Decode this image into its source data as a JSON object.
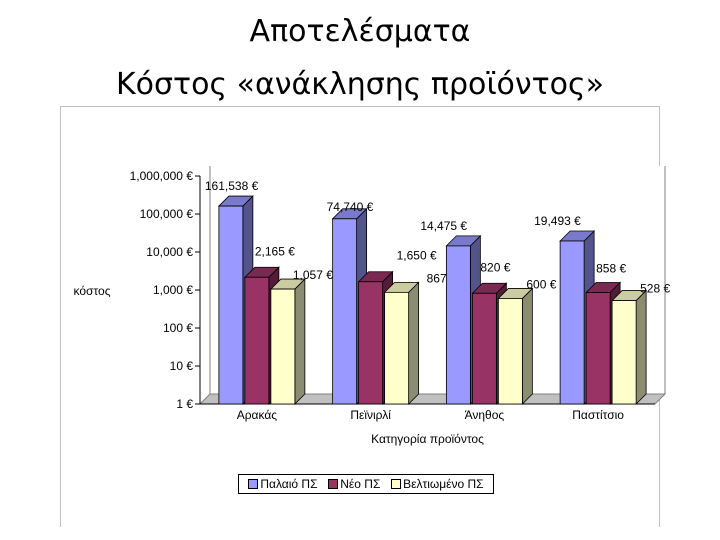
{
  "slide": {
    "title_line1": "Αποτελέσματα",
    "title_line2": "Κόστος «ανάκλησης προϊόντος»"
  },
  "chart_data": {
    "type": "bar",
    "title": "",
    "xlabel": "Κατηγορία προϊόντος",
    "ylabel": "κόστος",
    "yscale": "log",
    "ylim": [
      1,
      1000000
    ],
    "yticks": [
      {
        "value": 1000000,
        "label": "1,000,000 €"
      },
      {
        "value": 100000,
        "label": "100,000 €"
      },
      {
        "value": 10000,
        "label": "10,000 €"
      },
      {
        "value": 1000,
        "label": "1,000 €"
      },
      {
        "value": 100,
        "label": "100 €"
      },
      {
        "value": 10,
        "label": "10 €"
      },
      {
        "value": 1,
        "label": "1 €"
      }
    ],
    "categories": [
      "Αρακάς",
      "Πεϊνιρλί",
      "Άνηθος",
      "Παστίτσιο"
    ],
    "series": [
      {
        "name": "Παλαιό ΠΣ",
        "color": "#9999ff",
        "values": [
          161538,
          74740,
          14475,
          19493
        ],
        "labels": [
          "161,538 €",
          "74,740 €",
          "14,475 €",
          "19,493 €"
        ]
      },
      {
        "name": "Νέο ΠΣ",
        "color": "#993366",
        "values": [
          2165,
          1650,
          820,
          858
        ],
        "labels": [
          "2,165 €",
          "1,650 €",
          "820 €",
          "858 €"
        ]
      },
      {
        "name": "Βελτιωμένο ΠΣ",
        "color": "#ffffcc",
        "values": [
          1057,
          867,
          600,
          528
        ],
        "labels": [
          "1,057 €",
          "867 €",
          "600 €",
          "528 €"
        ]
      }
    ],
    "grid": false,
    "legend": "bottom"
  }
}
